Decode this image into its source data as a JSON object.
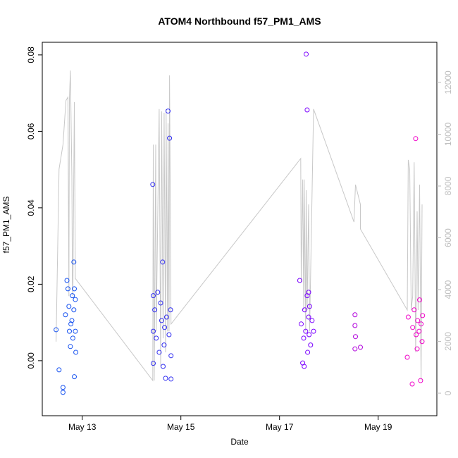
{
  "chart_data": {
    "type": "scatter",
    "title": "ATOM4 Northbound f57_PM1_AMS",
    "xlabel": "Date",
    "ylabel": "f57_PM1_AMS",
    "xlim": [
      12.19,
      20.19
    ],
    "xticks": [
      {
        "value": 13,
        "label": "May 13"
      },
      {
        "value": 15,
        "label": "May 15"
      },
      {
        "value": 17,
        "label": "May 17"
      },
      {
        "value": 19,
        "label": "May 19"
      }
    ],
    "ylim": [
      -0.0144,
      0.0833
    ],
    "yticks": [
      {
        "value": 0,
        "label": "0.00"
      },
      0.02,
      0.04,
      0.06,
      0.08
    ],
    "y2lim": [
      -870,
      13550
    ],
    "y2ticks": [
      0,
      2000,
      4000,
      6000,
      8000,
      10000,
      12000
    ],
    "y2color": "#bebebe",
    "series": [
      {
        "type": "line",
        "axis": "y2",
        "color": "#c8c8c8",
        "x": [
          12.47,
          12.53,
          12.61,
          12.67,
          12.71,
          12.73,
          12.74,
          12.76,
          12.79,
          12.8,
          12.81,
          12.84,
          12.86,
          14.43,
          14.44,
          14.46,
          14.49,
          14.5,
          14.56,
          14.59,
          14.61,
          14.64,
          14.66,
          14.69,
          14.7,
          14.73,
          14.74,
          14.76,
          14.77,
          14.8,
          17.43,
          17.44,
          17.47,
          17.49,
          17.5,
          17.53,
          17.54,
          17.56,
          17.59,
          17.61,
          17.69,
          18.51,
          18.54,
          18.64,
          18.64,
          19.59,
          19.61,
          19.64,
          19.67,
          19.7,
          19.73,
          19.76,
          19.79,
          19.81,
          19.84,
          19.87,
          19.89
        ],
        "values": [
          1990,
          8650,
          9600,
          11300,
          11430,
          3750,
          11370,
          12460,
          8380,
          4300,
          3750,
          11240,
          4430,
          490,
          9600,
          490,
          9600,
          2390,
          10970,
          1030,
          10880,
          2120,
          10830,
          1580,
          10970,
          2390,
          10420,
          2390,
          12270,
          2670,
          9060,
          4300,
          8250,
          3210,
          8250,
          2390,
          7840,
          3210,
          7290,
          2390,
          10970,
          6610,
          8050,
          7290,
          6340,
          3210,
          9010,
          8650,
          3210,
          3750,
          8920,
          1580,
          7020,
          3210,
          8050,
          490,
          7290
        ]
      },
      {
        "type": "scatter",
        "color": "#1450f0",
        "x": [
          12.47,
          12.53,
          12.61,
          12.61,
          12.66,
          12.69,
          12.71,
          12.73,
          12.74,
          12.76,
          12.77,
          12.79,
          12.8,
          12.81,
          12.83,
          12.83,
          12.84,
          12.84,
          12.86,
          12.86,
          12.87
        ],
        "values": [
          0.0081,
          -0.0024,
          -0.007,
          -0.0083,
          0.012,
          0.021,
          0.0188,
          0.0142,
          0.0077,
          0.0037,
          0.0096,
          0.0105,
          0.017,
          0.0059,
          0.0258,
          0.0133,
          -0.0042,
          0.0188,
          0.016,
          0.0077,
          0.0022
        ]
      },
      {
        "type": "scatter",
        "color": "#2f2cf0",
        "x": [
          14.43,
          14.44,
          14.44,
          14.44,
          14.47,
          14.5,
          14.53,
          14.56,
          14.59,
          14.61,
          14.63,
          14.64,
          14.66,
          14.67,
          14.69,
          14.71,
          14.74,
          14.76,
          14.77,
          14.79,
          14.8,
          14.8
        ],
        "values": [
          0.0461,
          0.017,
          0.0077,
          -0.0007,
          0.0133,
          0.0059,
          0.0179,
          0.0022,
          0.0151,
          0.0105,
          0.0258,
          -0.0015,
          0.0041,
          0.0087,
          -0.0046,
          0.0114,
          0.0653,
          0.0068,
          0.0582,
          0.0133,
          0.0013,
          -0.0048
        ]
      },
      {
        "type": "scatter",
        "color": "#7a00ff",
        "x": [
          17.41,
          17.44,
          17.47,
          17.49,
          17.5,
          17.51,
          17.53,
          17.54,
          17.56,
          17.56,
          17.57,
          17.59,
          17.59,
          17.6,
          17.61,
          17.63,
          17.66,
          17.69
        ],
        "values": [
          0.021,
          0.0096,
          -0.0006,
          0.0059,
          -0.0015,
          0.0133,
          0.0077,
          0.0802,
          0.017,
          0.0656,
          0.0022,
          0.0179,
          0.0114,
          0.0068,
          0.0142,
          0.0041,
          0.0105,
          0.0077
        ]
      },
      {
        "type": "scatter",
        "color": "#b000dc",
        "x": [
          18.53,
          18.53,
          18.54,
          18.53,
          18.64
        ],
        "values": [
          0.012,
          0.0092,
          0.0063,
          0.0031,
          0.0035
        ]
      },
      {
        "type": "scatter",
        "color": "#f000c8",
        "x": [
          19.59,
          19.61,
          19.69,
          19.7,
          19.73,
          19.76,
          19.77,
          19.79,
          19.8,
          19.83,
          19.84,
          19.86,
          19.87,
          19.89,
          19.9
        ],
        "values": [
          0.0009,
          0.0114,
          -0.0061,
          0.0087,
          0.0133,
          0.0581,
          0.0068,
          0.0031,
          0.0105,
          0.0077,
          0.0159,
          -0.0052,
          0.0096,
          0.005,
          0.0118
        ]
      }
    ]
  }
}
